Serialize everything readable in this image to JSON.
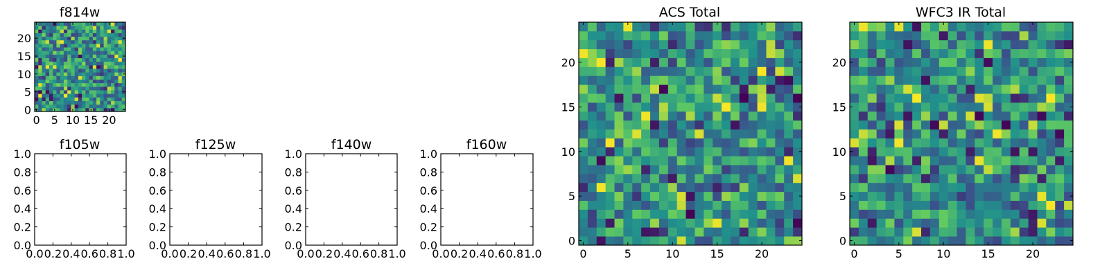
{
  "chart_data": [
    {
      "type": "heatmap",
      "title": "f814w",
      "xlim": [
        -0.5,
        24.5
      ],
      "ylim": [
        -0.5,
        24.5
      ],
      "xticks": [
        0,
        5,
        10,
        15,
        20
      ],
      "yticks": [
        0,
        5,
        10,
        15,
        20
      ],
      "grid_size": 25,
      "colormap": "viridis",
      "seed": 814
    },
    {
      "type": "heatmap",
      "title": "ACS Total",
      "xlim": [
        -0.5,
        24.5
      ],
      "ylim": [
        -0.5,
        24.5
      ],
      "xticks": [
        0,
        5,
        10,
        15,
        20
      ],
      "yticks": [
        0,
        5,
        10,
        15,
        20
      ],
      "grid_size": 25,
      "colormap": "viridis",
      "seed": 1001
    },
    {
      "type": "heatmap",
      "title": "WFC3 IR Total",
      "xlim": [
        -0.5,
        24.5
      ],
      "ylim": [
        -0.5,
        24.5
      ],
      "xticks": [
        0,
        5,
        10,
        15,
        20
      ],
      "yticks": [
        0,
        5,
        10,
        15,
        20
      ],
      "grid_size": 25,
      "colormap": "viridis",
      "seed": 2002
    },
    {
      "type": "empty",
      "title": "f105w",
      "xlim": [
        0,
        1
      ],
      "ylim": [
        0,
        1
      ],
      "xticks": [
        "0.0",
        "0.2",
        "0.4",
        "0.6",
        "0.8",
        "1.0"
      ],
      "yticks": [
        "0.0",
        "0.2",
        "0.4",
        "0.6",
        "0.8",
        "1.0"
      ]
    },
    {
      "type": "empty",
      "title": "f125w",
      "xlim": [
        0,
        1
      ],
      "ylim": [
        0,
        1
      ],
      "xticks": [
        "0.0",
        "0.2",
        "0.4",
        "0.6",
        "0.8",
        "1.0"
      ],
      "yticks": [
        "0.0",
        "0.2",
        "0.4",
        "0.6",
        "0.8",
        "1.0"
      ]
    },
    {
      "type": "empty",
      "title": "f140w",
      "xlim": [
        0,
        1
      ],
      "ylim": [
        0,
        1
      ],
      "xticks": [
        "0.0",
        "0.2",
        "0.4",
        "0.6",
        "0.8",
        "1.0"
      ],
      "yticks": [
        "0.0",
        "0.2",
        "0.4",
        "0.6",
        "0.8",
        "1.0"
      ]
    },
    {
      "type": "empty",
      "title": "f160w",
      "xlim": [
        0,
        1
      ],
      "ylim": [
        0,
        1
      ],
      "xticks": [
        "0.0",
        "0.2",
        "0.4",
        "0.6",
        "0.8",
        "1.0"
      ],
      "yticks": [
        "0.0",
        "0.2",
        "0.4",
        "0.6",
        "0.8",
        "1.0"
      ]
    }
  ]
}
